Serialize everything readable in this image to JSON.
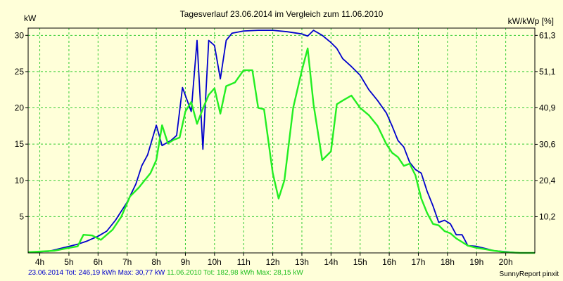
{
  "chart_data": {
    "type": "line",
    "title": "Tagesverlauf 23.06.2014 im Vergleich zum 11.06.2010",
    "ylabel": "kW",
    "y2label": "kW/kWp [%]",
    "ylim": [
      0,
      31
    ],
    "y2lim": [
      0,
      63.35
    ],
    "xlim": [
      3.6,
      21.0
    ],
    "x_ticks": [
      4,
      5,
      6,
      7,
      8,
      9,
      10,
      11,
      12,
      13,
      14,
      15,
      16,
      17,
      18,
      19,
      20
    ],
    "x_tick_labels": [
      "4h",
      "5h",
      "6h",
      "7h",
      "8h",
      "9h",
      "10h",
      "11h",
      "12h",
      "13h",
      "14h",
      "15h",
      "16h",
      "17h",
      "18h",
      "19h",
      "20h"
    ],
    "y_ticks": [
      5,
      10,
      15,
      20,
      25,
      30
    ],
    "y_tick_labels": [
      "5",
      "10",
      "15",
      "20",
      "25",
      "30"
    ],
    "y2_ticks": [
      10.2,
      20.4,
      30.6,
      40.9,
      51.1,
      61.3
    ],
    "y2_tick_labels": [
      "10,2",
      "20,4",
      "30,6",
      "40,9",
      "51,1",
      "61,3"
    ],
    "grid": true,
    "series": [
      {
        "name": "23.06.2014",
        "color": "#0000cc",
        "x": [
          3.6,
          4.3,
          4.6,
          5.0,
          5.3,
          5.6,
          6.0,
          6.3,
          6.6,
          7.0,
          7.3,
          7.5,
          7.7,
          8.0,
          8.2,
          8.5,
          8.7,
          8.9,
          9.2,
          9.4,
          9.6,
          9.8,
          10.0,
          10.2,
          10.4,
          10.6,
          11.0,
          11.5,
          12.0,
          12.5,
          13.0,
          13.2,
          13.4,
          13.7,
          14.0,
          14.2,
          14.4,
          14.7,
          15.0,
          15.3,
          15.6,
          15.9,
          16.1,
          16.3,
          16.5,
          16.7,
          16.9,
          17.1,
          17.3,
          17.5,
          17.7,
          17.9,
          18.1,
          18.3,
          18.5,
          18.7,
          19.0,
          19.3,
          19.6,
          19.9,
          20.2,
          20.5,
          21.0
        ],
        "values": [
          0.1,
          0.2,
          0.5,
          0.9,
          1.2,
          1.6,
          2.3,
          3.0,
          4.5,
          7.0,
          9.5,
          12.0,
          13.5,
          17.6,
          14.8,
          15.5,
          16.2,
          22.8,
          19.5,
          29.3,
          14.3,
          29.3,
          28.6,
          24.0,
          29.3,
          30.3,
          30.6,
          30.7,
          30.7,
          30.5,
          30.2,
          29.9,
          30.7,
          30.0,
          29.0,
          28.2,
          26.8,
          25.7,
          24.5,
          22.5,
          21.0,
          19.3,
          17.5,
          15.5,
          14.6,
          12.5,
          11.5,
          11.0,
          8.5,
          6.5,
          4.2,
          4.5,
          4.0,
          2.5,
          2.5,
          1.0,
          0.9,
          0.6,
          0.3,
          0.2,
          0.1,
          0.0,
          0.0
        ]
      },
      {
        "name": "11.06.2010",
        "color": "#22ee22",
        "x": [
          3.6,
          4.5,
          5.0,
          5.3,
          5.5,
          5.8,
          6.1,
          6.5,
          6.8,
          7.1,
          7.4,
          7.6,
          7.8,
          8.0,
          8.2,
          8.4,
          8.6,
          8.8,
          9.0,
          9.2,
          9.4,
          9.6,
          9.8,
          10.0,
          10.2,
          10.4,
          10.7,
          11.0,
          11.3,
          11.5,
          11.7,
          12.0,
          12.2,
          12.4,
          12.7,
          13.0,
          13.2,
          13.4,
          13.7,
          14.0,
          14.2,
          14.4,
          14.7,
          15.0,
          15.3,
          15.6,
          15.9,
          16.1,
          16.3,
          16.5,
          16.7,
          16.9,
          17.1,
          17.3,
          17.5,
          17.7,
          17.9,
          18.1,
          18.3,
          18.5,
          18.7,
          19.0,
          19.3,
          19.6,
          20.0,
          20.5,
          21.0
        ],
        "values": [
          0.1,
          0.3,
          0.7,
          0.9,
          2.5,
          2.4,
          1.8,
          3.2,
          5.0,
          7.8,
          9.0,
          10.0,
          11.0,
          12.8,
          17.6,
          15.1,
          15.6,
          15.9,
          19.5,
          20.8,
          17.8,
          19.9,
          21.8,
          22.7,
          19.2,
          23.0,
          23.5,
          25.2,
          25.2,
          20.0,
          19.8,
          11.0,
          7.5,
          10.0,
          20.0,
          25.2,
          28.2,
          20.5,
          12.8,
          14.0,
          20.5,
          21.0,
          21.7,
          20.0,
          19.0,
          17.5,
          15.0,
          13.8,
          13.2,
          12.0,
          12.3,
          10.7,
          7.5,
          5.5,
          4.0,
          3.8,
          3.0,
          2.7,
          2.0,
          1.5,
          1.0,
          0.7,
          0.5,
          0.3,
          0.1,
          0.0,
          0.0
        ]
      }
    ]
  },
  "footer": {
    "series1_label": "23.06.2014 Tot: 246,19 kWh Max: 30,77 kW",
    "series2_label": "11.06.2010 Tot: 182,98 kWh Max: 28,15 kW",
    "credit": "SunnyReport pinxit"
  }
}
